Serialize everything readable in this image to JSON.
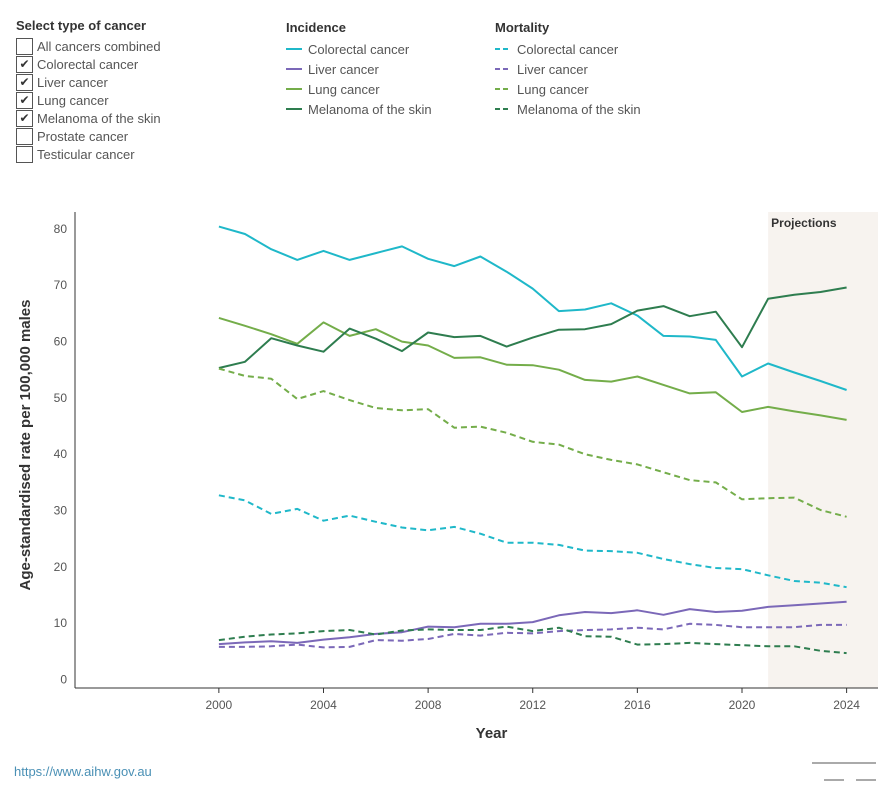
{
  "filter": {
    "title": "Select type of cancer",
    "options": [
      {
        "label": "All cancers combined",
        "checked": false
      },
      {
        "label": "Colorectal cancer",
        "checked": true
      },
      {
        "label": "Liver cancer",
        "checked": true
      },
      {
        "label": "Lung cancer",
        "checked": true
      },
      {
        "label": "Melanoma of the skin",
        "checked": true
      },
      {
        "label": "Prostate cancer",
        "checked": false
      },
      {
        "label": "Testicular cancer",
        "checked": false
      }
    ]
  },
  "legend": {
    "incidence_title": "Incidence",
    "mortality_title": "Mortality",
    "items": [
      {
        "label": "Colorectal cancer",
        "color": "#1fb8c9"
      },
      {
        "label": "Liver cancer",
        "color": "#7b68b8"
      },
      {
        "label": "Lung cancer",
        "color": "#74ad4a"
      },
      {
        "label": "Melanoma of the skin",
        "color": "#2e7d4f"
      }
    ]
  },
  "source_link": "https://www.aihw.gov.au",
  "chart_data": {
    "type": "line",
    "xlabel": "Year",
    "ylabel": "Age-standardised rate per 100,000 males",
    "xlim": [
      1994.5,
      2025.2
    ],
    "ylim": [
      -1.5,
      83
    ],
    "xticks": [
      2000,
      2004,
      2008,
      2012,
      2016,
      2020,
      2024
    ],
    "yticks": [
      0,
      10,
      20,
      30,
      40,
      50,
      60,
      70,
      80
    ],
    "grid": false,
    "projection_label": "Projections",
    "projection_range": [
      2021,
      2025.2
    ],
    "x": [
      2000,
      2001,
      2002,
      2003,
      2004,
      2005,
      2006,
      2007,
      2008,
      2009,
      2010,
      2011,
      2012,
      2013,
      2014,
      2015,
      2016,
      2017,
      2018,
      2019,
      2020,
      2021,
      2022,
      2023,
      2024
    ],
    "series": [
      {
        "name": "Colorectal cancer",
        "measure": "Incidence",
        "dashed": false,
        "color": "#1fb8c9",
        "values": [
          80.4,
          79.1,
          76.4,
          74.5,
          76.1,
          74.5,
          75.7,
          76.9,
          74.7,
          73.4,
          75.1,
          72.4,
          69.4,
          65.4,
          65.7,
          66.8,
          64.6,
          61.0,
          60.9,
          60.3,
          53.8,
          56.1,
          54.5,
          53.0,
          51.4
        ]
      },
      {
        "name": "Liver cancer",
        "measure": "Incidence",
        "dashed": false,
        "color": "#7b68b8",
        "values": [
          6.3,
          6.6,
          6.8,
          6.5,
          7.1,
          7.5,
          8.1,
          8.4,
          9.4,
          9.3,
          9.9,
          9.9,
          10.2,
          11.4,
          12.0,
          11.8,
          12.3,
          11.5,
          12.5,
          12.0,
          12.2,
          12.9,
          13.2,
          13.5,
          13.8
        ]
      },
      {
        "name": "Lung cancer",
        "measure": "Incidence",
        "dashed": false,
        "color": "#74ad4a",
        "values": [
          64.2,
          62.8,
          61.3,
          59.6,
          63.4,
          61.0,
          62.2,
          60.0,
          59.3,
          57.1,
          57.2,
          55.9,
          55.8,
          55.0,
          53.2,
          52.9,
          53.8,
          52.3,
          50.8,
          51.0,
          47.5,
          48.4,
          47.6,
          46.9,
          46.1
        ]
      },
      {
        "name": "Melanoma of the skin",
        "measure": "Incidence",
        "dashed": false,
        "color": "#2e7d4f",
        "values": [
          55.3,
          56.4,
          60.6,
          59.3,
          58.2,
          62.3,
          60.5,
          58.3,
          61.6,
          60.8,
          61.0,
          59.1,
          60.7,
          62.1,
          62.2,
          63.1,
          65.5,
          66.3,
          64.5,
          65.3,
          59.0,
          67.6,
          68.3,
          68.8,
          69.6
        ]
      },
      {
        "name": "Colorectal cancer",
        "measure": "Mortality",
        "dashed": true,
        "color": "#1fb8c9",
        "values": [
          32.7,
          31.8,
          29.4,
          30.3,
          28.2,
          29.1,
          28.0,
          27.0,
          26.5,
          27.1,
          25.9,
          24.3,
          24.3,
          23.9,
          22.9,
          22.8,
          22.5,
          21.4,
          20.5,
          19.8,
          19.6,
          18.5,
          17.5,
          17.2,
          16.4
        ]
      },
      {
        "name": "Liver cancer",
        "measure": "Mortality",
        "dashed": true,
        "color": "#7b68b8",
        "values": [
          5.8,
          5.8,
          5.9,
          6.2,
          5.7,
          5.8,
          7.0,
          6.9,
          7.2,
          8.1,
          7.8,
          8.3,
          8.2,
          8.6,
          8.8,
          8.9,
          9.2,
          8.9,
          9.9,
          9.7,
          9.3,
          9.3,
          9.3,
          9.7,
          9.7
        ]
      },
      {
        "name": "Lung cancer",
        "measure": "Mortality",
        "dashed": true,
        "color": "#74ad4a",
        "values": [
          55.2,
          53.9,
          53.4,
          49.8,
          51.2,
          49.6,
          48.2,
          47.8,
          48.0,
          44.7,
          44.9,
          43.8,
          42.2,
          41.7,
          40.0,
          39.0,
          38.2,
          36.8,
          35.4,
          35.0,
          32.0,
          32.2,
          32.3,
          30.1,
          28.9
        ]
      },
      {
        "name": "Melanoma of the skin",
        "measure": "Mortality",
        "dashed": true,
        "color": "#2e7d4f",
        "values": [
          7.0,
          7.6,
          8.0,
          8.2,
          8.6,
          8.8,
          8.0,
          8.7,
          8.9,
          8.8,
          8.8,
          9.4,
          8.6,
          9.2,
          7.7,
          7.6,
          6.2,
          6.3,
          6.5,
          6.3,
          6.1,
          5.9,
          5.9,
          5.1,
          4.7
        ]
      }
    ]
  }
}
